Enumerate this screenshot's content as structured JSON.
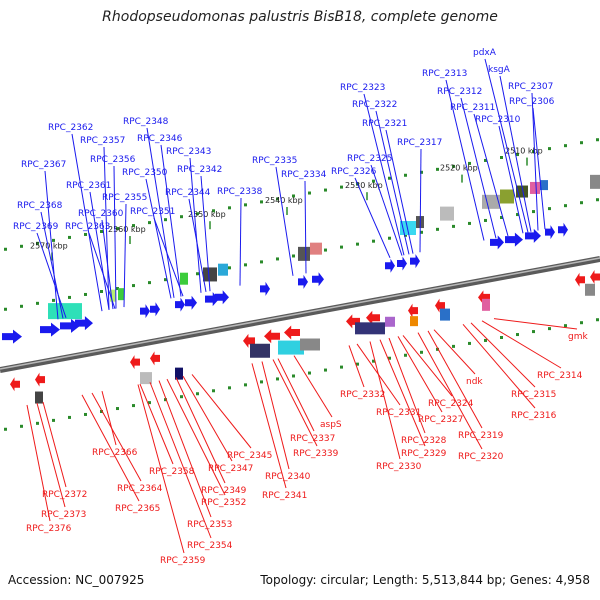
{
  "title": "Rhodopseudomonas palustris BisB18, complete genome",
  "footer": {
    "accession": "Accession: NC_007925",
    "summary": "Topology: circular; Length: 5,513,844 bp; Genes: 4,958"
  },
  "colors": {
    "forward": "#1a1aee",
    "reverse": "#ee1a1a",
    "axis": "#808080",
    "tick": "#2a8a2a"
  },
  "scale_labels": [
    "2510 kbp",
    "2520 kbp",
    "2530 kbp",
    "2540 kbp",
    "2550 kbp",
    "2560 kbp",
    "2570 kbp"
  ],
  "forward_genes": [
    "pdxA",
    "ksgA",
    "RPC_2313",
    "RPC_2312",
    "RPC_2307",
    "RPC_2311",
    "RPC_2306",
    "RPC_2310",
    "RPC_2323",
    "RPC_2322",
    "RPC_2321",
    "RPC_2317",
    "RPC_2325",
    "RPC_2326",
    "RPC_2335",
    "RPC_2334",
    "RPC_2338",
    "RPC_2348",
    "RPC_2346",
    "RPC_2343",
    "RPC_2342",
    "RPC_2344",
    "RPC_2362",
    "RPC_2357",
    "RPC_2356",
    "RPC_2350",
    "RPC_2367",
    "RPC_2361",
    "RPC_2355",
    "RPC_2368",
    "RPC_2360",
    "RPC_2351",
    "RPC_2369",
    "RPC_2363"
  ],
  "reverse_genes": [
    "gmk",
    "RPC_2314",
    "RPC_2315",
    "RPC_2316",
    "ndk",
    "RPC_2319",
    "RPC_2320",
    "RPC_2324",
    "RPC_2327",
    "RPC_2328",
    "RPC_2329",
    "RPC_2330",
    "RPC_2331",
    "RPC_2332",
    "aspS",
    "RPC_2337",
    "RPC_2339",
    "RPC_2340",
    "RPC_2341",
    "RPC_2345",
    "RPC_2347",
    "RPC_2349",
    "RPC_2352",
    "RPC_2353",
    "RPC_2354",
    "RPC_2358",
    "RPC_2359",
    "RPC_2366",
    "RPC_2364",
    "RPC_2365",
    "RPC_2372",
    "RPC_2373",
    "RPC_2376"
  ]
}
